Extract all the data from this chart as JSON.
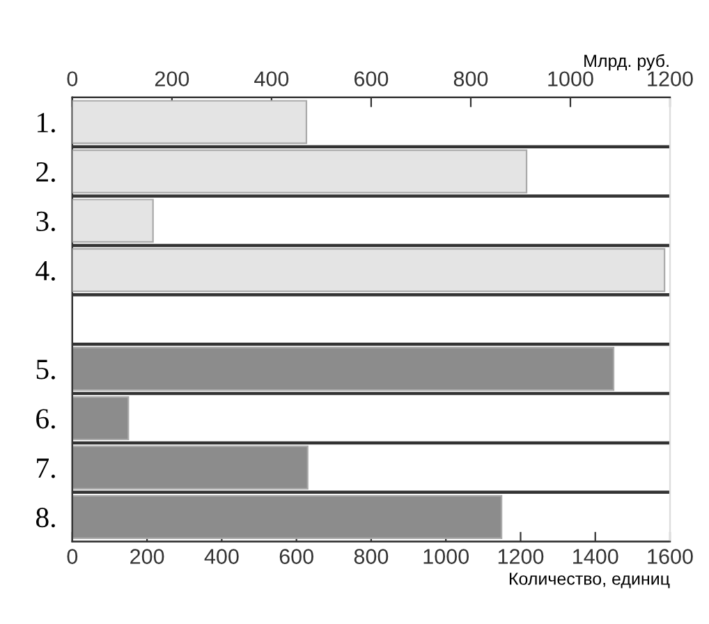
{
  "chart_data": {
    "type": "bar",
    "orientation": "horizontal",
    "categories": [
      "1.",
      "2.",
      "3.",
      "4.",
      null,
      "5.",
      "6.",
      "7.",
      "8."
    ],
    "series": [
      {
        "color": "#e4e4e4",
        "axis": "x2",
        "values": [
          470,
          912,
          162,
          1189,
          null,
          null,
          null,
          null,
          null
        ]
      },
      {
        "color": "#8c8c8c",
        "values": [
          null,
          null,
          null,
          null,
          null,
          1449,
          150,
          630,
          1149
        ]
      }
    ],
    "xlim": [
      0,
      1600
    ],
    "xticks": [
      0,
      200,
      400,
      600,
      800,
      1000,
      1200,
      1400,
      1600
    ],
    "xlabel": "Количество, единиц",
    "x2lim": [
      0,
      1200
    ],
    "x2ticks": [
      0,
      200,
      400,
      600,
      800,
      1000,
      1200
    ],
    "x2label": "Млрд. руб.",
    "grid": "y",
    "legend": false
  }
}
